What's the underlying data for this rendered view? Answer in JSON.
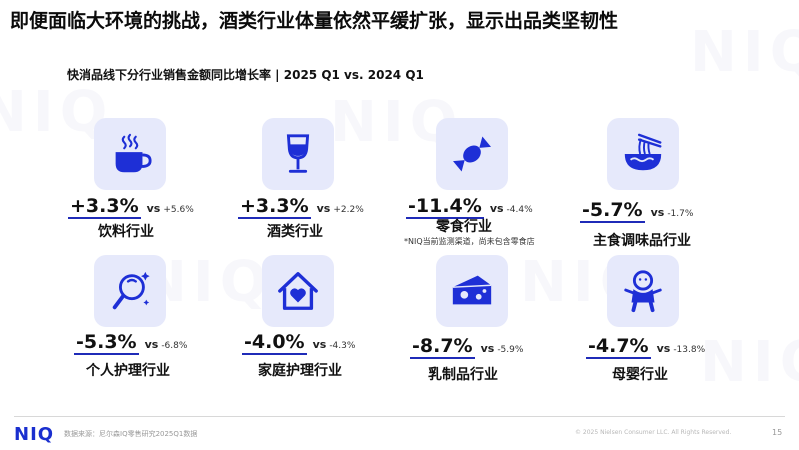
{
  "title": "即便面临大环境的挑战，酒类行业体量依然平缓扩张，显示出品类坚韧性",
  "subtitle": "快消品线下分行业销售金额同比增长率 | 2025 Q1 vs. 2024 Q1",
  "vs_label": "vs",
  "colors": {
    "accent": "#1f2bb8",
    "icon_bg": "#e6e9fb",
    "icon_fg": "#1e2fd6"
  },
  "categories": [
    {
      "icon": "coffee-cup-icon",
      "value": "+3.3%",
      "comparison": "+5.6%",
      "label": "饮料行业"
    },
    {
      "icon": "wine-glass-icon",
      "value": "+3.3%",
      "comparison": "+2.2%",
      "label": "酒类行业"
    },
    {
      "icon": "candy-icon",
      "value": "-11.4%",
      "comparison": "-4.4%",
      "label": "零食行业",
      "note": "*NIQ当前监测渠道，尚未包含零食店"
    },
    {
      "icon": "noodle-bowl-icon",
      "value": "-5.7%",
      "comparison": "-1.7%",
      "label": "主食调味品行业"
    },
    {
      "icon": "hand-mirror-icon",
      "value": "-5.3%",
      "comparison": "-6.8%",
      "label": "个人护理行业"
    },
    {
      "icon": "house-heart-icon",
      "value": "-4.0%",
      "comparison": "-4.3%",
      "label": "家庭护理行业"
    },
    {
      "icon": "cheese-icon",
      "value": "-8.7%",
      "comparison": "-5.9%",
      "label": "乳制品行业"
    },
    {
      "icon": "baby-icon",
      "value": "-4.7%",
      "comparison": "-13.8%",
      "label": "母婴行业"
    }
  ],
  "footer": {
    "logo": "NIQ",
    "source": "数据来源：尼尔森IQ零售研究2025Q1数据",
    "copyright": "© 2025 Nielsen Consumer LLC. All Rights Reserved.",
    "page": "15"
  }
}
